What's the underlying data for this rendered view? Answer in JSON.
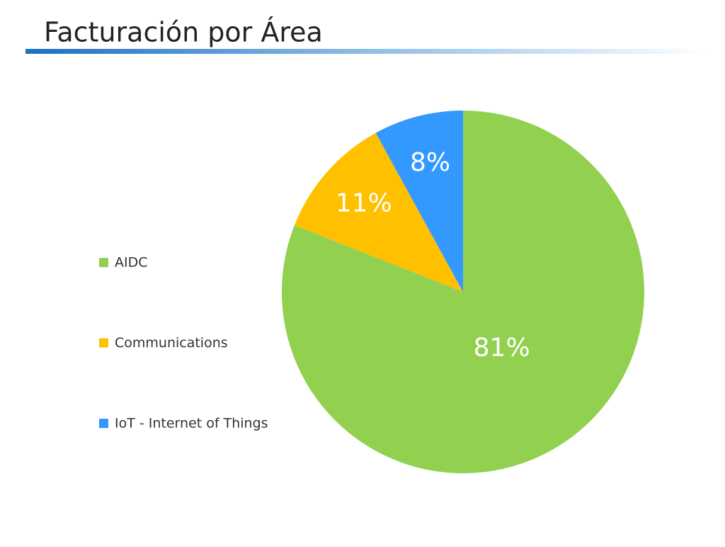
{
  "chart_data": {
    "type": "pie",
    "title": "Facturación por Área",
    "categories": [
      "AIDC",
      "Communications",
      "IoT - Internet of Things"
    ],
    "values": [
      81,
      11,
      8
    ],
    "value_labels": [
      "81%",
      "11%",
      "8%"
    ],
    "colors": [
      "#92d050",
      "#ffc000",
      "#3399ff"
    ],
    "legend": "left"
  }
}
